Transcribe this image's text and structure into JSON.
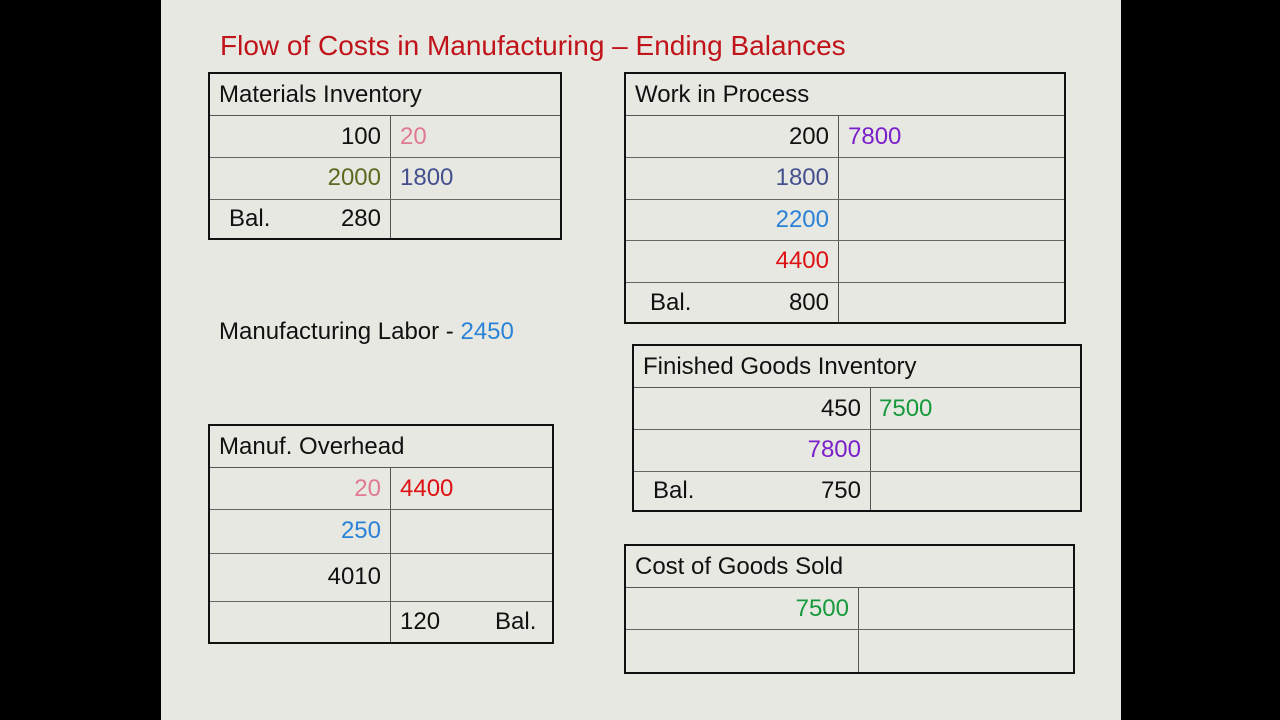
{
  "title": "Flow of Costs in Manufacturing – Ending Balances",
  "labor": {
    "label": "Manufacturing Labor - ",
    "value": "2450"
  },
  "materials": {
    "title": "Materials Inventory",
    "debits": [
      "100",
      "2000",
      "280"
    ],
    "credits": [
      "20",
      "1800"
    ],
    "bal_label": "Bal."
  },
  "wip": {
    "title": "Work in Process",
    "debits": [
      "200",
      "1800",
      "2200",
      "4400",
      "800"
    ],
    "credits": [
      "7800"
    ],
    "bal_label": "Bal."
  },
  "overhead": {
    "title": "Manuf. Overhead",
    "debits": [
      "20",
      "250",
      "4010"
    ],
    "credits": [
      "4400",
      "120"
    ],
    "bal_label": "Bal."
  },
  "fg": {
    "title": "Finished Goods Inventory",
    "debits": [
      "450",
      "7800",
      "750"
    ],
    "credits": [
      "7500"
    ],
    "bal_label": "Bal."
  },
  "cogs": {
    "title": "Cost of Goods Sold",
    "debits": [
      "7500"
    ]
  },
  "colors": {
    "title_red": "#c0141b",
    "pink": "#e07a93",
    "olive": "#5c6a20",
    "slate": "#44508e",
    "blue": "#2a82d6",
    "red": "#dd1111",
    "purple": "#7a1fc9",
    "green": "#169a3c"
  }
}
